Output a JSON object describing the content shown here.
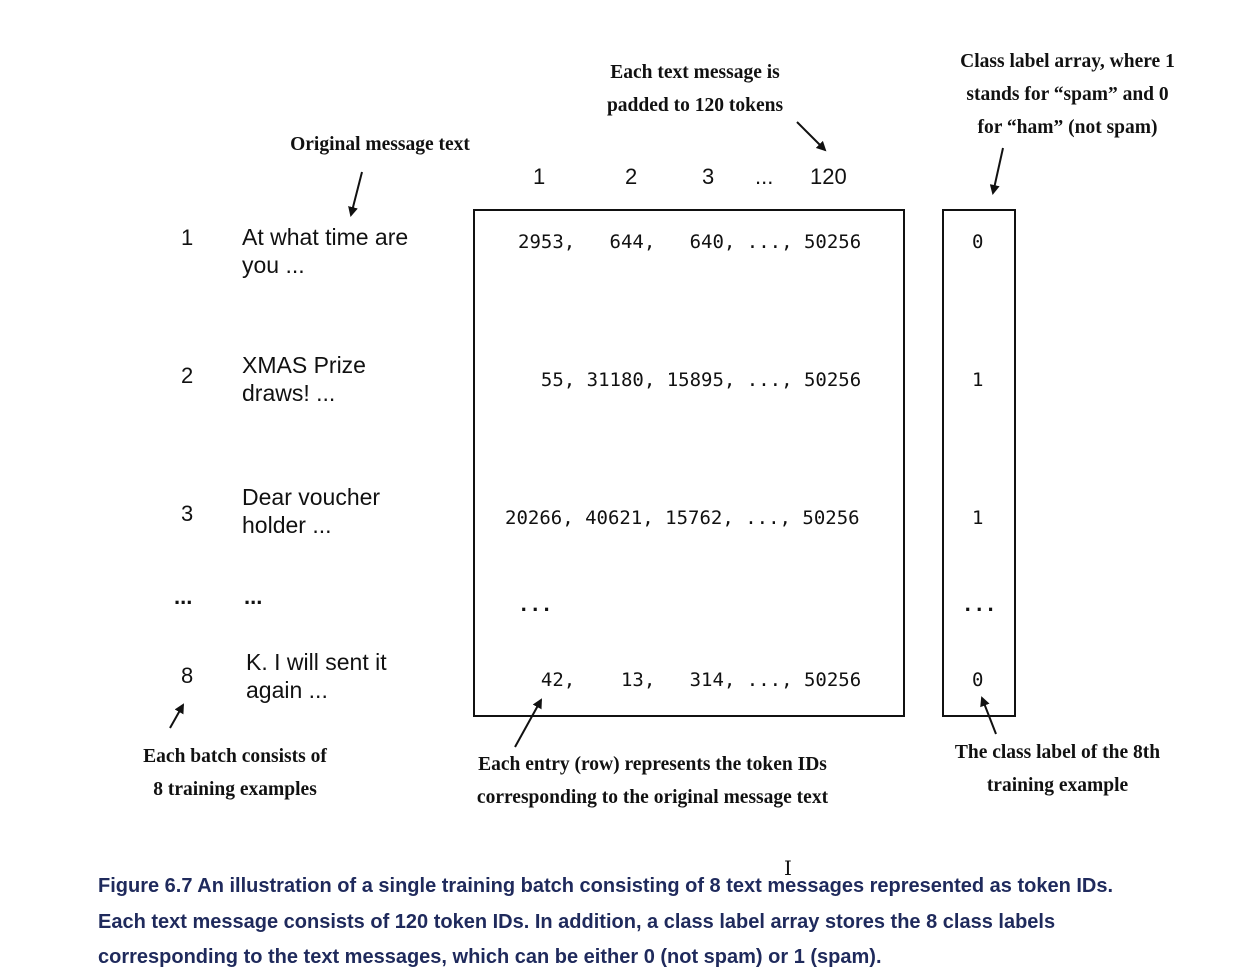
{
  "annotations": {
    "padded_line1": "Each text message is",
    "padded_line2": "padded to 120 tokens",
    "class_line1": "Class label array, where 1",
    "class_line2": "stands for “spam” and 0",
    "class_line3": "for “ham” (not spam)",
    "original_text": "Original message text",
    "batch_line1": "Each batch consists of",
    "batch_line2": "8 training examples",
    "entry_line1": "Each entry (row) represents the token IDs",
    "entry_line2": "corresponding to the original message text",
    "label8_line1": "The class label of the 8th",
    "label8_line2": "training example"
  },
  "columns": [
    "1",
    "2",
    "3",
    "...",
    "120"
  ],
  "rows": [
    {
      "index": "1",
      "msg1": "At what time are",
      "msg2": "you ...",
      "tokens": "2953,   644,   640, ..., 50256",
      "label": "0"
    },
    {
      "index": "2",
      "msg1": "XMAS Prize",
      "msg2": "draws!  ...",
      "tokens": "  55, 31180, 15895, ..., 50256",
      "label": "1"
    },
    {
      "index": "3",
      "msg1": "Dear voucher",
      "msg2": "holder ...",
      "tokens": "20266, 40621, 15762, ..., 50256",
      "label": "1"
    },
    {
      "index": "...",
      "msg1": "...",
      "msg2": "",
      "tokens": "...",
      "label": "..."
    },
    {
      "index": "8",
      "msg1": "K. I will sent it",
      "msg2": "again ...",
      "tokens": "  42,    13,   314, ..., 50256",
      "label": "0"
    }
  ],
  "caption": {
    "line1": "Figure 6.7 An illustration of a single training batch consisting of 8 text messages represented as token IDs.",
    "line2": "Each text message consists of 120 token IDs. In addition, a class label array stores the 8 class labels",
    "line3": "corresponding to the text messages, which can be either 0 (not spam) or 1 (spam)."
  }
}
